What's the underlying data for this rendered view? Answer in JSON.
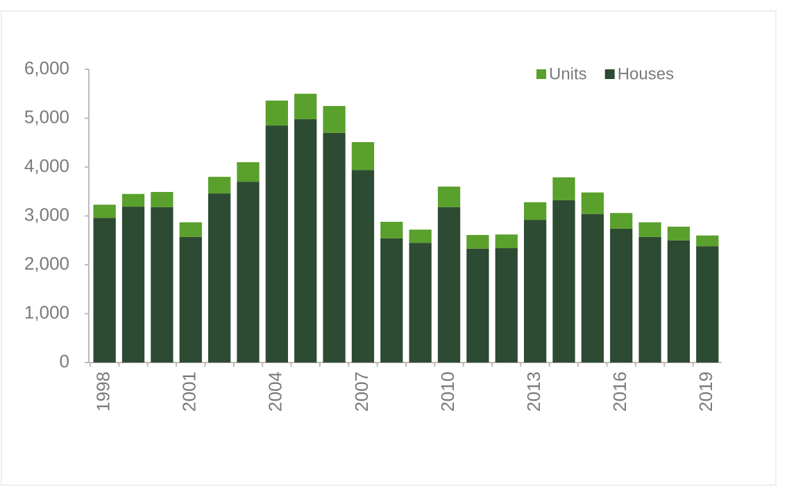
{
  "chart_data": {
    "type": "stacked_bar",
    "categories": [
      "1998",
      null,
      null,
      "2001",
      null,
      null,
      "2004",
      null,
      null,
      "2007",
      null,
      null,
      "2010",
      null,
      null,
      "2013",
      null,
      null,
      "2016",
      null,
      null,
      "2019"
    ],
    "series": [
      {
        "name": "Houses",
        "color": "#2d4a32",
        "values": [
          2960,
          3190,
          3180,
          2570,
          3460,
          3700,
          4850,
          4980,
          4700,
          3940,
          2540,
          2450,
          3180,
          2330,
          2340,
          2920,
          3320,
          3040,
          2740,
          2570,
          2500,
          2380
        ]
      },
      {
        "name": "Units",
        "color": "#5aa02c",
        "values": [
          270,
          260,
          310,
          300,
          340,
          400,
          510,
          520,
          550,
          570,
          340,
          270,
          420,
          280,
          280,
          360,
          470,
          440,
          320,
          300,
          280,
          220
        ]
      }
    ],
    "ylim": [
      0,
      6000
    ],
    "yticks": [
      0,
      {
        "value": 1000,
        "label": "1,000"
      },
      {
        "value": 2000,
        "label": "2,000"
      },
      {
        "value": 3000,
        "label": "3,000"
      },
      {
        "value": 4000,
        "label": "4,000"
      },
      {
        "value": 5000,
        "label": "5,000"
      },
      {
        "value": 6000,
        "label": "6,000"
      }
    ],
    "legend": "top-right"
  }
}
